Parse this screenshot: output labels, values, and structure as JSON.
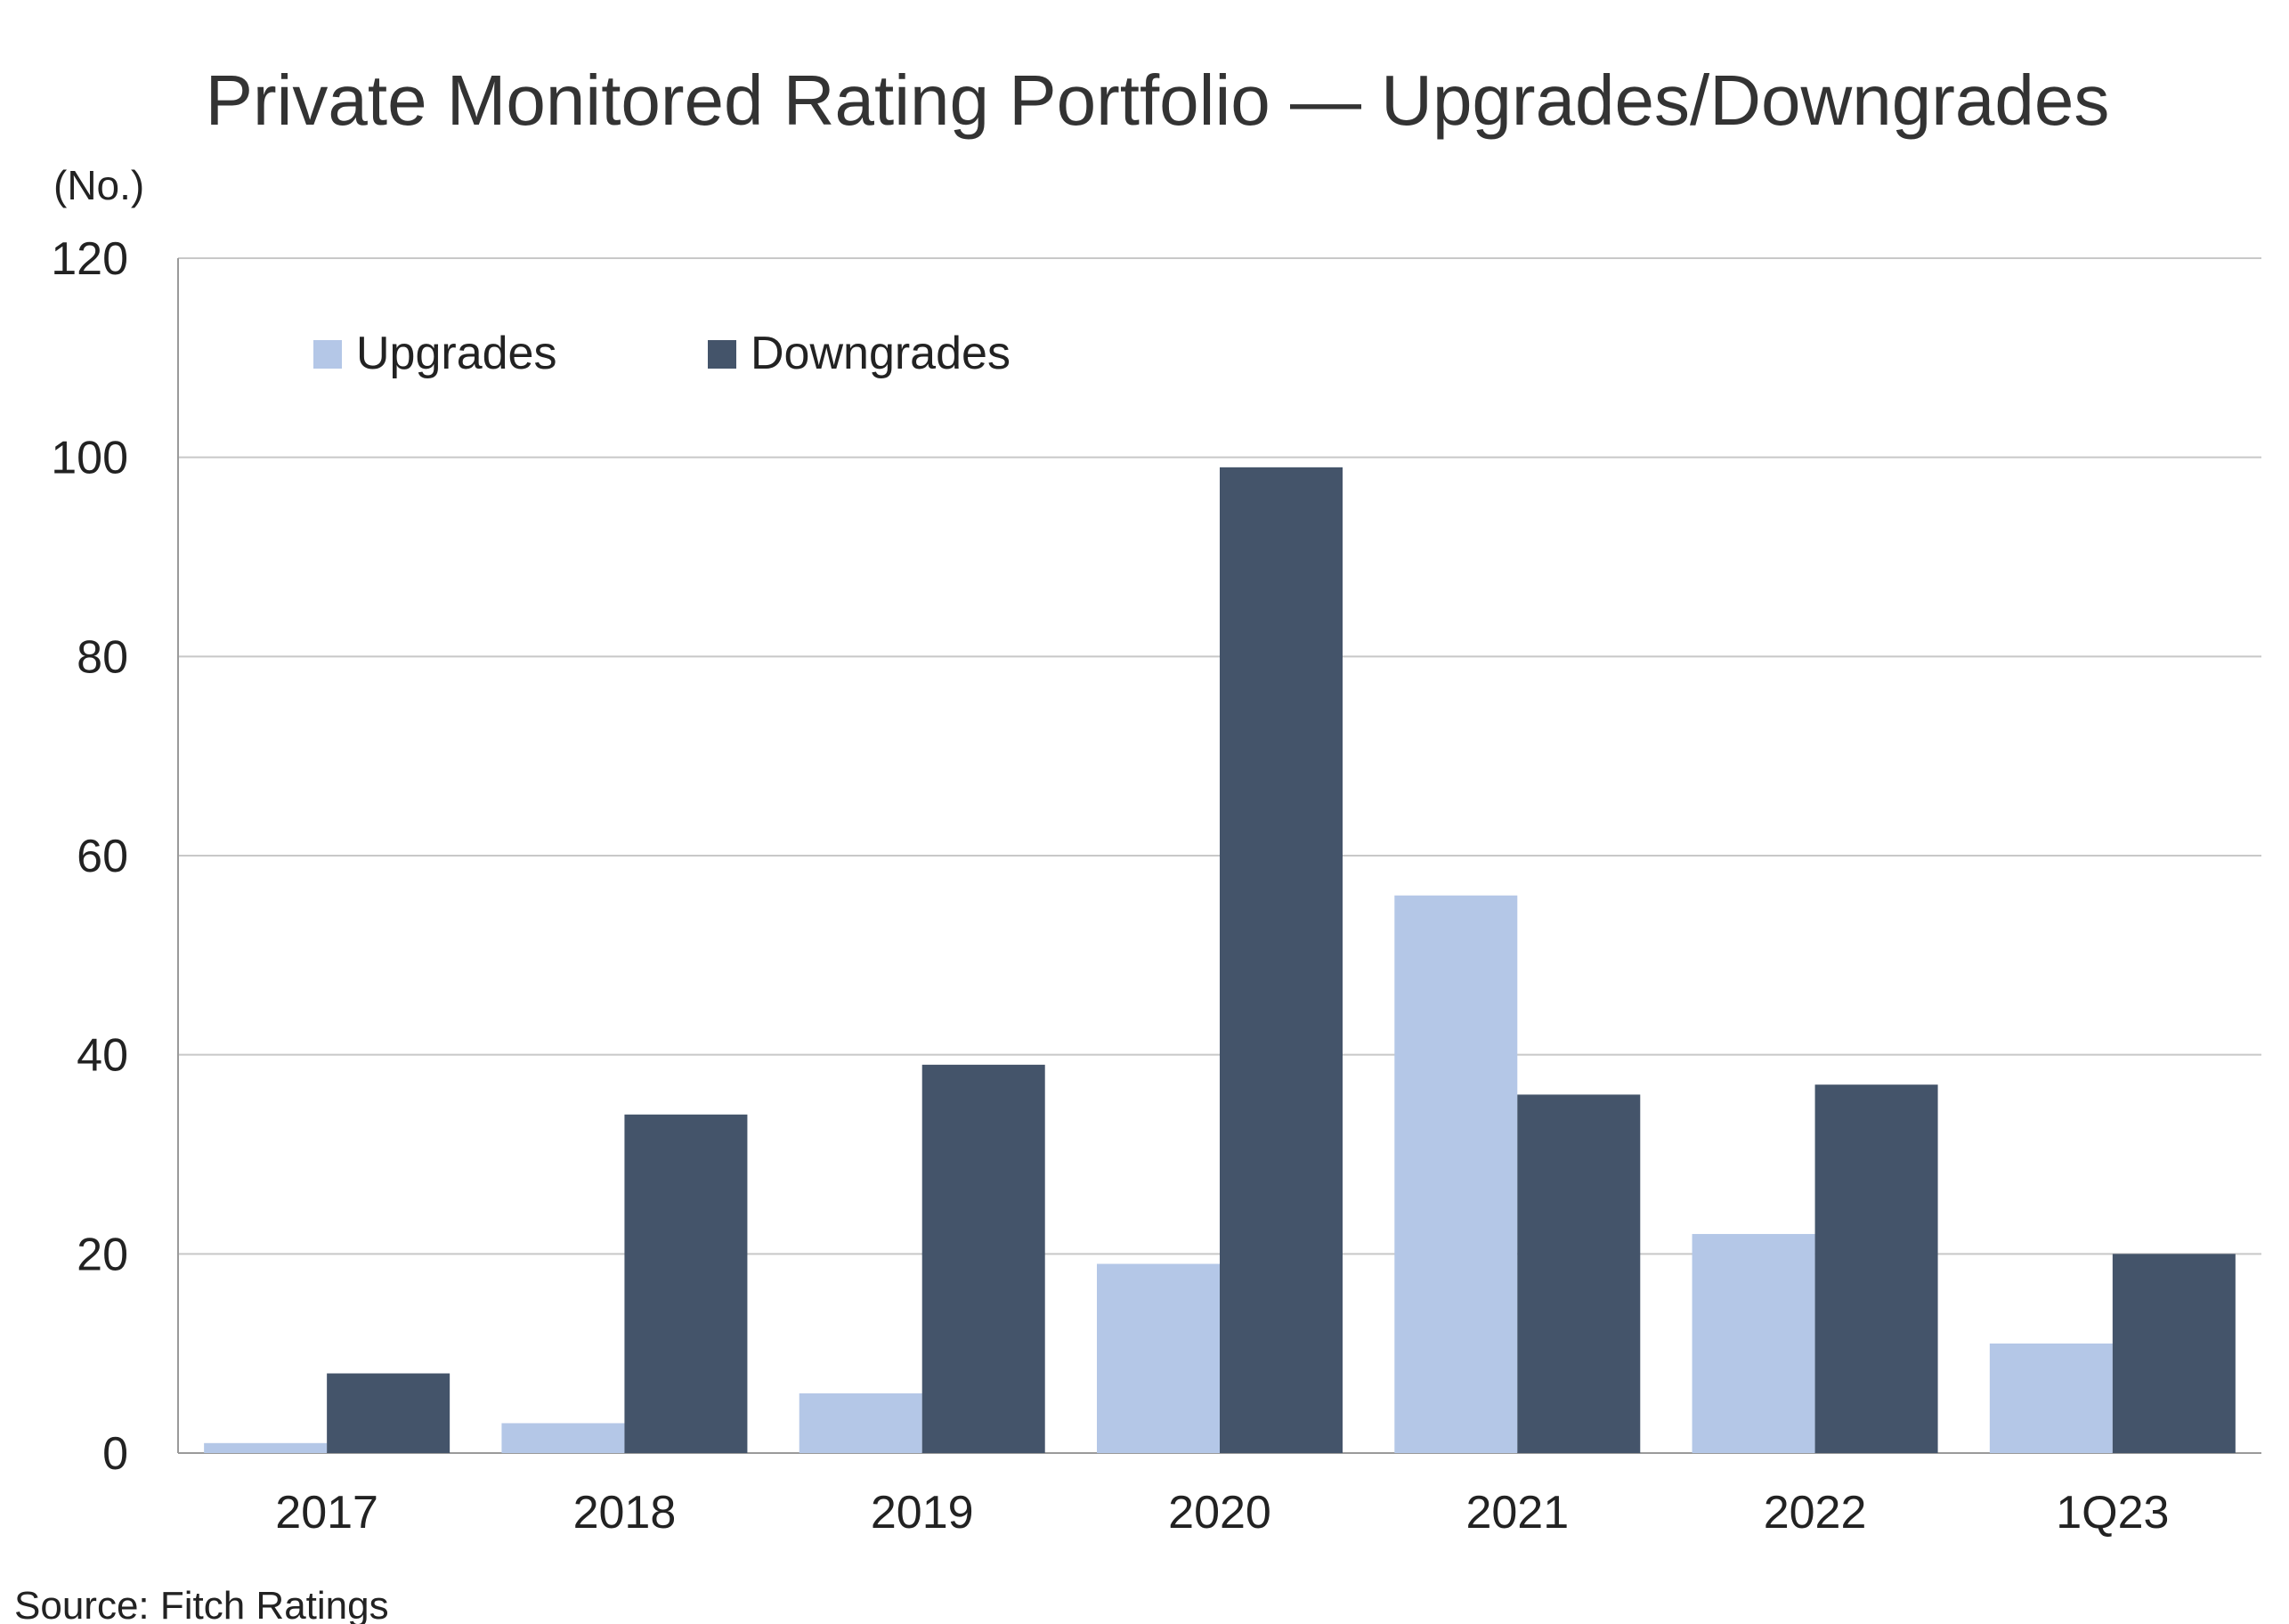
{
  "chart_data": {
    "type": "bar",
    "title": "Private Monitored Rating Portfolio — Upgrades/Downgrades",
    "unit_label": "(No.)",
    "xlabel": "",
    "ylabel": "",
    "categories": [
      "2017",
      "2018",
      "2019",
      "2020",
      "2021",
      "2022",
      "1Q23"
    ],
    "series": [
      {
        "name": "Upgrades",
        "color": "#b4c7e7",
        "values": [
          1,
          3,
          6,
          19,
          56,
          22,
          11
        ]
      },
      {
        "name": "Downgrades",
        "color": "#44546a",
        "values": [
          8,
          34,
          39,
          99,
          36,
          37,
          20
        ]
      }
    ],
    "ylim": [
      0,
      120
    ],
    "yticks": [
      0,
      20,
      40,
      60,
      80,
      100,
      120
    ],
    "grid": true,
    "legend_position": "top-left",
    "source": "Source: Fitch Ratings"
  }
}
